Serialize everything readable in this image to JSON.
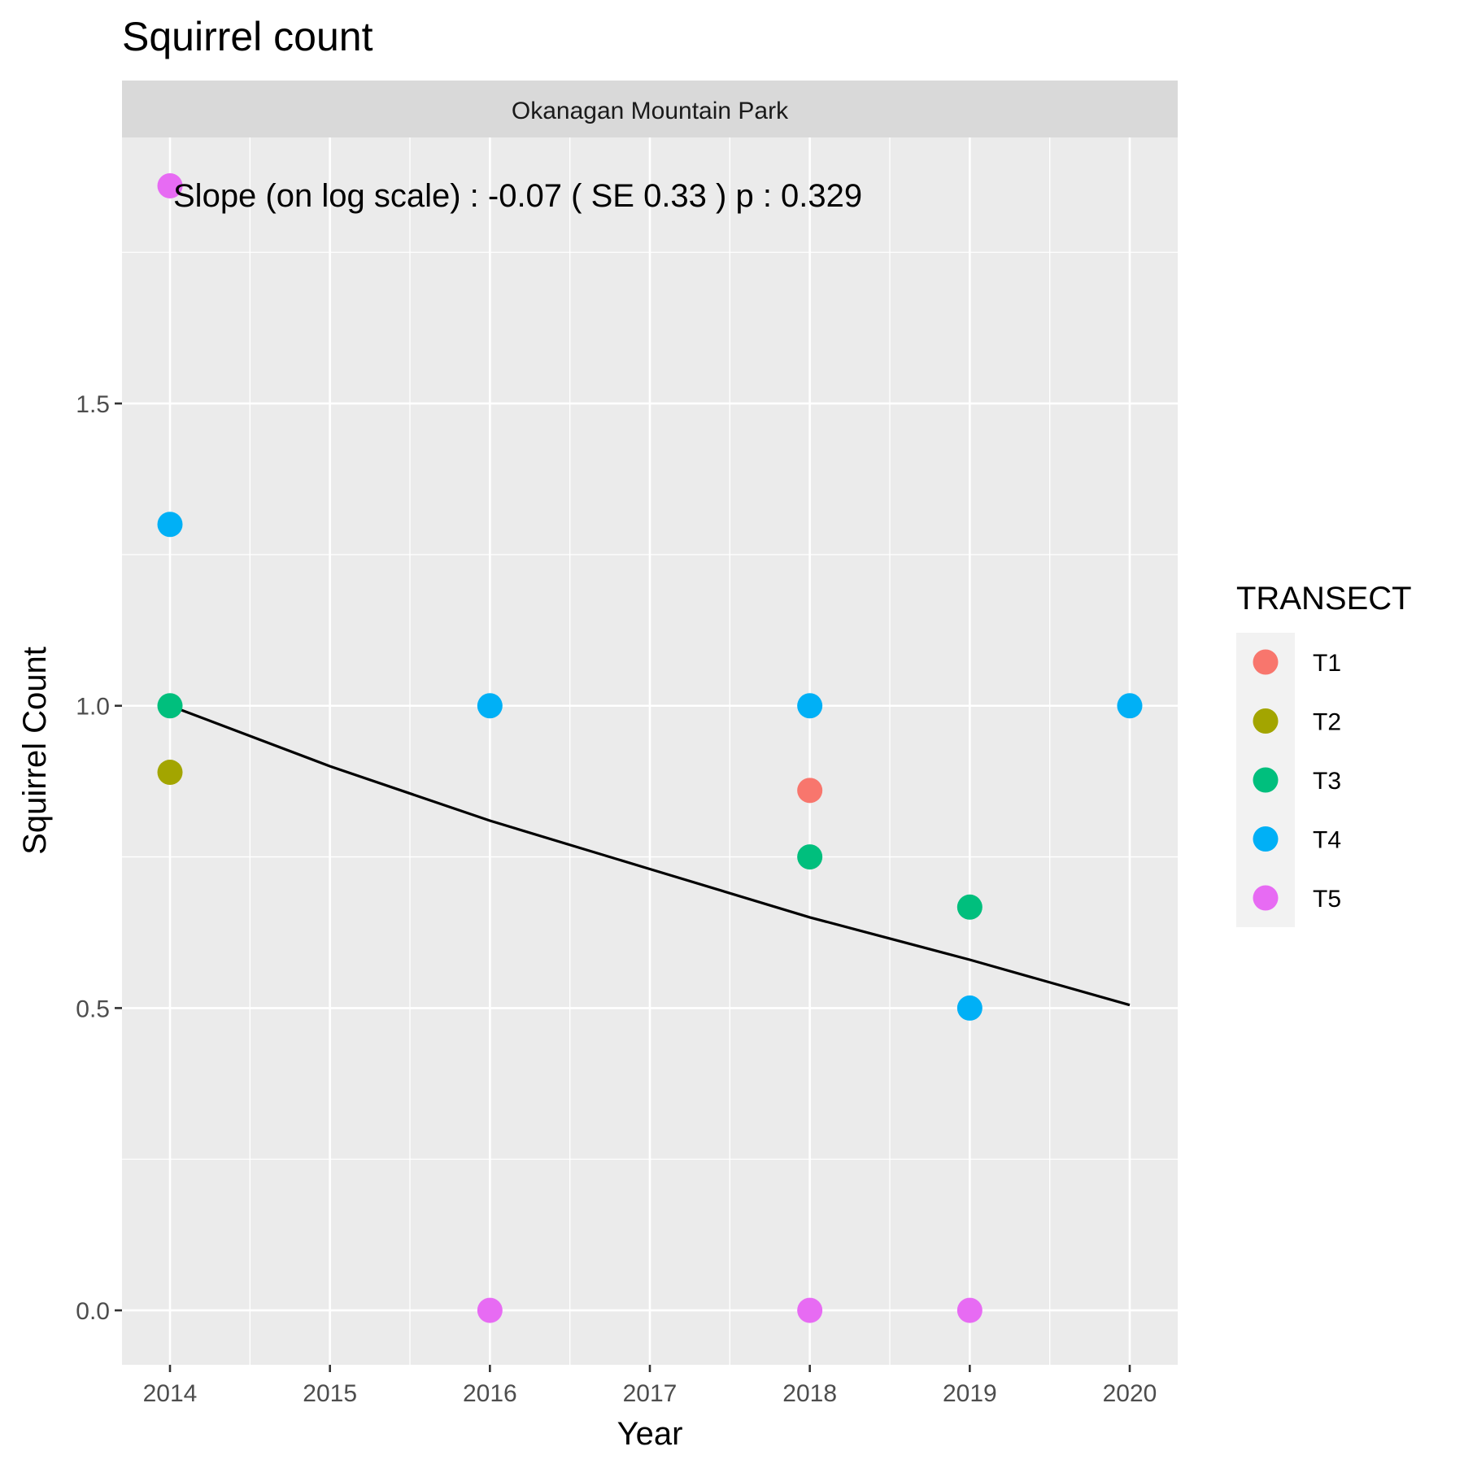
{
  "chart_data": {
    "type": "scatter",
    "title": "Squirrel count",
    "facet_label": "Okanagan Mountain Park",
    "xlabel": "Year",
    "ylabel": "Squirrel Count",
    "xlim": [
      2013.7,
      2020.3
    ],
    "ylim": [
      -0.09,
      1.94
    ],
    "x_ticks": [
      2014,
      2015,
      2016,
      2017,
      2018,
      2019,
      2020
    ],
    "y_ticks": [
      0.0,
      0.5,
      1.0,
      1.5
    ],
    "y_tick_labels": [
      "0.0",
      "0.5",
      "1.0",
      "1.5"
    ],
    "grid": true,
    "annotation": "Slope (on log scale) :  -0.07  ( SE  0.33 )  p : 0.329",
    "legend": {
      "title": "TRANSECT",
      "position": "right"
    },
    "series": [
      {
        "name": "T1",
        "color": "#F8766D",
        "points": [
          [
            2018,
            0.86
          ]
        ]
      },
      {
        "name": "T2",
        "color": "#A3A500",
        "points": [
          [
            2014,
            0.89
          ]
        ]
      },
      {
        "name": "T3",
        "color": "#00BF7D",
        "points": [
          [
            2014,
            1.0
          ],
          [
            2018,
            0.75
          ],
          [
            2019,
            0.667
          ]
        ]
      },
      {
        "name": "T4",
        "color": "#00B0F6",
        "points": [
          [
            2014,
            1.3
          ],
          [
            2016,
            1.0
          ],
          [
            2018,
            1.0
          ],
          [
            2019,
            0.5
          ],
          [
            2020,
            1.0
          ]
        ]
      },
      {
        "name": "T5",
        "color": "#E76BF3",
        "points": [
          [
            2014,
            1.86
          ],
          [
            2016,
            0.0
          ],
          [
            2018,
            0.0
          ],
          [
            2019,
            0.0
          ]
        ]
      }
    ],
    "trend_line": {
      "color": "#000000",
      "points": [
        [
          2014,
          1.0
        ],
        [
          2015,
          0.9
        ],
        [
          2016,
          0.81
        ],
        [
          2017,
          0.73
        ],
        [
          2018,
          0.65
        ],
        [
          2019,
          0.58
        ],
        [
          2020,
          0.505
        ]
      ]
    }
  }
}
